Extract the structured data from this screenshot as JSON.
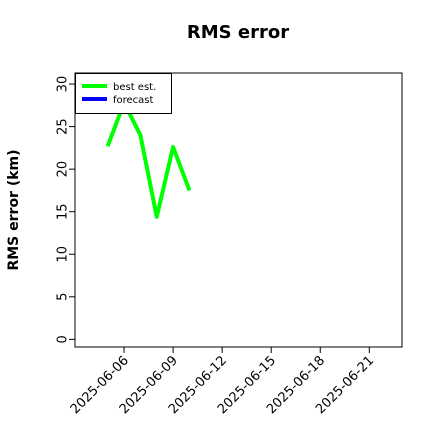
{
  "chart_data": {
    "type": "line",
    "title": "RMS error",
    "y_label": "RMS error (km)",
    "x": [
      "2025-06-05",
      "2025-06-06",
      "2025-06-07",
      "2025-06-08",
      "2025-06-09",
      "2025-06-10"
    ],
    "series": [
      {
        "name": "best est.",
        "color": "#00ff00",
        "values": [
          22.7,
          27.8,
          24,
          14.4,
          22.6,
          17.5
        ]
      },
      {
        "name": "forecast",
        "color": "#0000ff",
        "values": [
          null,
          null,
          null,
          null,
          null,
          null
        ]
      }
    ],
    "xlim": [
      "2025-06-03",
      "2025-06-23"
    ],
    "xticks": [
      "2025-06-06",
      "2025-06-09",
      "2025-06-12",
      "2025-06-15",
      "2025-06-18",
      "2025-06-21"
    ],
    "xtick_label_colors": [
      "#000000",
      "#000000",
      "#228b22",
      "#000000",
      "#000000",
      "#000000"
    ],
    "ylim": [
      -0.9,
      31.3
    ],
    "yticks": [
      0,
      5,
      10,
      15,
      20,
      25,
      30
    ],
    "legend": "upper left",
    "grid": false
  }
}
